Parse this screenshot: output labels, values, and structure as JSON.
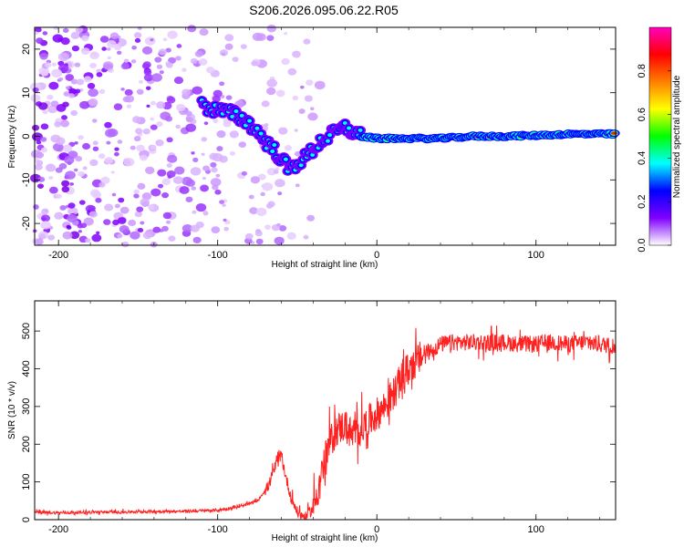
{
  "title": "S206.2026.095.06.22.R05",
  "chart_data": [
    {
      "type": "heatmap",
      "xlabel": "Height of straight line (km)",
      "ylabel": "Frequency (Hz)",
      "xlim": [
        -215,
        150
      ],
      "ylim": [
        -25,
        25
      ],
      "xticks": [
        -200,
        -100,
        0,
        100
      ],
      "yticks": [
        -20,
        -10,
        0,
        10,
        20
      ],
      "colorbar": {
        "label": "Normalized spectral amplitude",
        "ticks": [
          0.0,
          0.2,
          0.4,
          0.6,
          0.8
        ],
        "range": [
          0,
          1
        ],
        "colors": [
          "#ffffff",
          "#8000ff",
          "#0000ff",
          "#00ffff",
          "#00ff00",
          "#ffff00",
          "#ff8000",
          "#ff0000",
          "#ff00c0"
        ]
      },
      "ridge": [
        {
          "x": -110,
          "f": 7
        },
        {
          "x": -100,
          "f": 6
        },
        {
          "x": -90,
          "f": 5
        },
        {
          "x": -80,
          "f": 3
        },
        {
          "x": -75,
          "f": 1
        },
        {
          "x": -70,
          "f": -1
        },
        {
          "x": -65,
          "f": -3
        },
        {
          "x": -60,
          "f": -5
        },
        {
          "x": -55,
          "f": -8
        },
        {
          "x": -50,
          "f": -6
        },
        {
          "x": -45,
          "f": -5
        },
        {
          "x": -40,
          "f": -3
        },
        {
          "x": -35,
          "f": -1
        },
        {
          "x": -30,
          "f": 0
        },
        {
          "x": -25,
          "f": 1
        },
        {
          "x": -20,
          "f": 2
        },
        {
          "x": -15,
          "f": 1
        },
        {
          "x": -10,
          "f": 0
        },
        {
          "x": 0,
          "f": -0.5
        },
        {
          "x": 20,
          "f": -0.5
        },
        {
          "x": 40,
          "f": -0.5
        },
        {
          "x": 60,
          "f": 0
        },
        {
          "x": 80,
          "f": 0
        },
        {
          "x": 100,
          "f": 0.2
        },
        {
          "x": 120,
          "f": 0.5
        },
        {
          "x": 150,
          "f": 0.5
        }
      ]
    },
    {
      "type": "line",
      "xlabel": "Height of straight line (km)",
      "ylabel": "SNR (10 * v/v)",
      "xlim": [
        -215,
        150
      ],
      "ylim": [
        0,
        580
      ],
      "xticks": [
        -200,
        -100,
        0,
        100
      ],
      "yticks": [
        0,
        100,
        200,
        300,
        400,
        500
      ],
      "color": "#ff2020",
      "series": [
        {
          "name": "SNR",
          "x": [
            -215,
            -200,
            -180,
            -160,
            -140,
            -120,
            -100,
            -85,
            -75,
            -68,
            -64,
            -60,
            -57,
            -54,
            -50,
            -45,
            -40,
            -35,
            -30,
            -25,
            -20,
            -15,
            -10,
            -5,
            0,
            5,
            10,
            15,
            20,
            25,
            30,
            35,
            40,
            50,
            60,
            70,
            80,
            90,
            100,
            110,
            120,
            130,
            140,
            150
          ],
          "y": [
            20,
            18,
            20,
            20,
            22,
            22,
            25,
            35,
            50,
            90,
            140,
            170,
            110,
            60,
            20,
            5,
            30,
            120,
            200,
            240,
            250,
            220,
            240,
            260,
            280,
            300,
            330,
            370,
            400,
            420,
            440,
            450,
            465,
            470,
            470,
            470,
            470,
            465,
            465,
            470,
            465,
            470,
            465,
            460
          ]
        }
      ]
    }
  ]
}
